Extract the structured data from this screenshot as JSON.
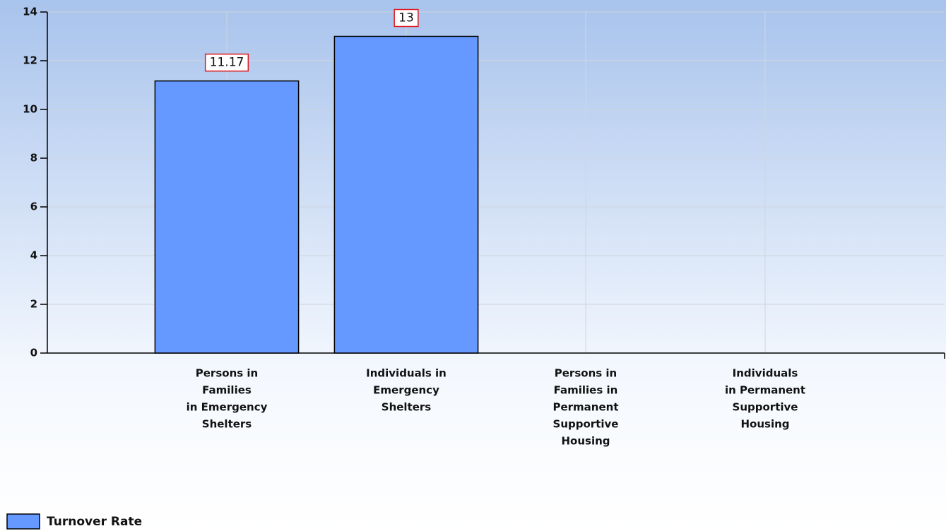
{
  "chart_data": {
    "type": "bar",
    "categories": [
      [
        "Persons in",
        "Families",
        "in Emergency",
        "Shelters"
      ],
      [
        "Individuals in",
        "Emergency",
        "Shelters"
      ],
      [
        "Persons in",
        "Families in",
        "Permanent",
        "Supportive",
        "Housing"
      ],
      [
        "Individuals",
        "in Permanent",
        "Supportive",
        "Housing"
      ]
    ],
    "series": [
      {
        "name": "Turnover Rate",
        "color": "#6699ff",
        "values": [
          11.17,
          13,
          null,
          null
        ],
        "value_labels": [
          "11.17",
          "13",
          null,
          null
        ]
      }
    ],
    "ylim": [
      0,
      14
    ],
    "yticks": [
      0,
      2,
      4,
      6,
      8,
      10,
      12,
      14
    ],
    "grid": true,
    "legend": "bottom-left"
  }
}
